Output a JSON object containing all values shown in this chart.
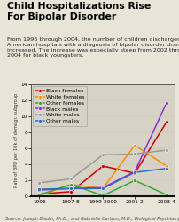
{
  "title": "Child Hospitalizations Rise\nFor Bipolar Disorder",
  "subtitle": "From 1996 through 2004, the number of children discharged from\nAmerican hospitals with a diagnosis of bipolar disorder dramatically\nincreased. The increase was especially steep from 2002 through\n2004 for black youngsters.",
  "source": "Source: Joseph Blader, Ph.D., and Gabrielle Carlson, M.D., Biological Psychiatry, in press",
  "ylabel": "Rate of BPD per 10k of demogr. subgroup",
  "x_labels": [
    "1996",
    "1997-8",
    "1999-2000",
    "2001-2",
    "2003-4"
  ],
  "x_values": [
    0,
    1,
    2,
    3,
    4
  ],
  "ylim": [
    0,
    14
  ],
  "yticks": [
    0,
    2,
    4,
    6,
    8,
    10,
    12,
    14
  ],
  "series": [
    {
      "label": "Black females",
      "color": "#cc0000",
      "marker": "o",
      "values": [
        0.3,
        0.6,
        3.8,
        2.9,
        9.3
      ]
    },
    {
      "label": "White females",
      "color": "#ff8c00",
      "marker": "o",
      "values": [
        0.1,
        1.5,
        1.0,
        6.4,
        3.8
      ]
    },
    {
      "label": "Other females",
      "color": "#33aa33",
      "marker": "o",
      "values": [
        0.2,
        1.5,
        0.1,
        2.0,
        0.2
      ]
    },
    {
      "label": "Black males",
      "color": "#8833cc",
      "marker": "o",
      "values": [
        0.8,
        1.0,
        1.1,
        3.1,
        11.7
      ]
    },
    {
      "label": "White males",
      "color": "#999999",
      "marker": "o",
      "values": [
        1.7,
        2.2,
        5.2,
        5.3,
        5.8
      ]
    },
    {
      "label": "Other males",
      "color": "#3366cc",
      "marker": "o",
      "values": [
        0.9,
        1.0,
        1.0,
        3.0,
        3.5
      ]
    }
  ],
  "background_color": "#e8e4d8",
  "plot_bg_color": "#d6d2c6",
  "title_color": "#000000",
  "title_fontsize": 7.8,
  "subtitle_fontsize": 4.6,
  "axis_fontsize": 4.2,
  "legend_fontsize": 4.3,
  "source_fontsize": 3.6
}
